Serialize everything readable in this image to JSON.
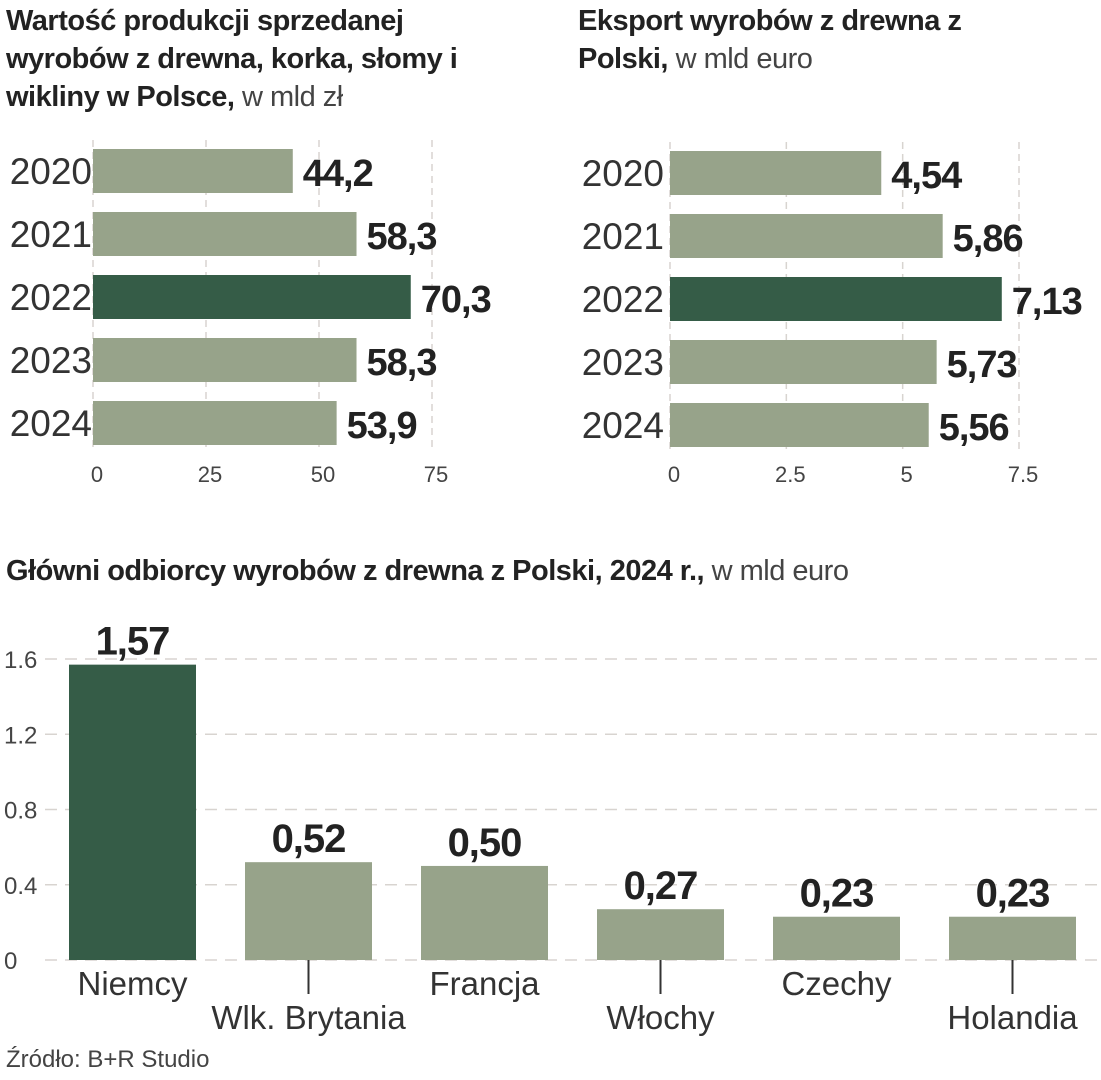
{
  "colors": {
    "normal": "#97a38a",
    "highlight": "#355c47",
    "text": "#222222",
    "grid": "#d8d4d0"
  },
  "chart_data": [
    {
      "type": "bar",
      "orientation": "horizontal",
      "title": "Wartość produkcji sprzedanej wyrobów z drewna, korka, słomy i wikliny w Polsce,",
      "unit": "w mld zł",
      "categories": [
        "2020",
        "2021",
        "2022",
        "2023",
        "2024"
      ],
      "values": [
        44.2,
        58.3,
        70.3,
        58.3,
        53.9
      ],
      "value_labels": [
        "44,2",
        "58,3",
        "70,3",
        "58,3",
        "53,9"
      ],
      "highlight": "2022",
      "xlim": [
        0,
        75
      ],
      "ticks": [
        0,
        25,
        50,
        75
      ],
      "tick_labels": [
        "0",
        "25",
        "50",
        "75"
      ],
      "grid": true
    },
    {
      "type": "bar",
      "orientation": "horizontal",
      "title": "Eksport wyrobów z drewna z Polski,",
      "unit": "w mld euro",
      "categories": [
        "2020",
        "2021",
        "2022",
        "2023",
        "2024"
      ],
      "values": [
        4.54,
        5.86,
        7.13,
        5.73,
        5.56
      ],
      "value_labels": [
        "4,54",
        "5,86",
        "7,13",
        "5,73",
        "5,56"
      ],
      "highlight": "2022",
      "xlim": [
        0,
        7.5
      ],
      "ticks": [
        0,
        2.5,
        5,
        7.5
      ],
      "tick_labels": [
        "0",
        "2.5",
        "5",
        "7.5"
      ],
      "grid": true
    },
    {
      "type": "bar",
      "orientation": "vertical",
      "title": "Główni odbiorcy wyrobów z drewna z Polski, 2024 r.,",
      "unit": "w mld euro",
      "categories": [
        "Niemcy",
        "Wlk. Brytania",
        "Francja",
        "Włochy",
        "Czechy",
        "Holandia"
      ],
      "values": [
        1.57,
        0.52,
        0.5,
        0.27,
        0.23,
        0.23
      ],
      "value_labels": [
        "1,57",
        "0,52",
        "0,50",
        "0,27",
        "0,23",
        "0,23"
      ],
      "highlight": "Niemcy",
      "ylim": [
        0,
        1.6
      ],
      "ticks": [
        0,
        0.4,
        0.8,
        1.2,
        1.6
      ],
      "tick_labels": [
        "0",
        "0.4",
        "0.8",
        "1.2",
        "1.6"
      ],
      "grid": true
    }
  ],
  "source": "Źródło: B+R Studio"
}
